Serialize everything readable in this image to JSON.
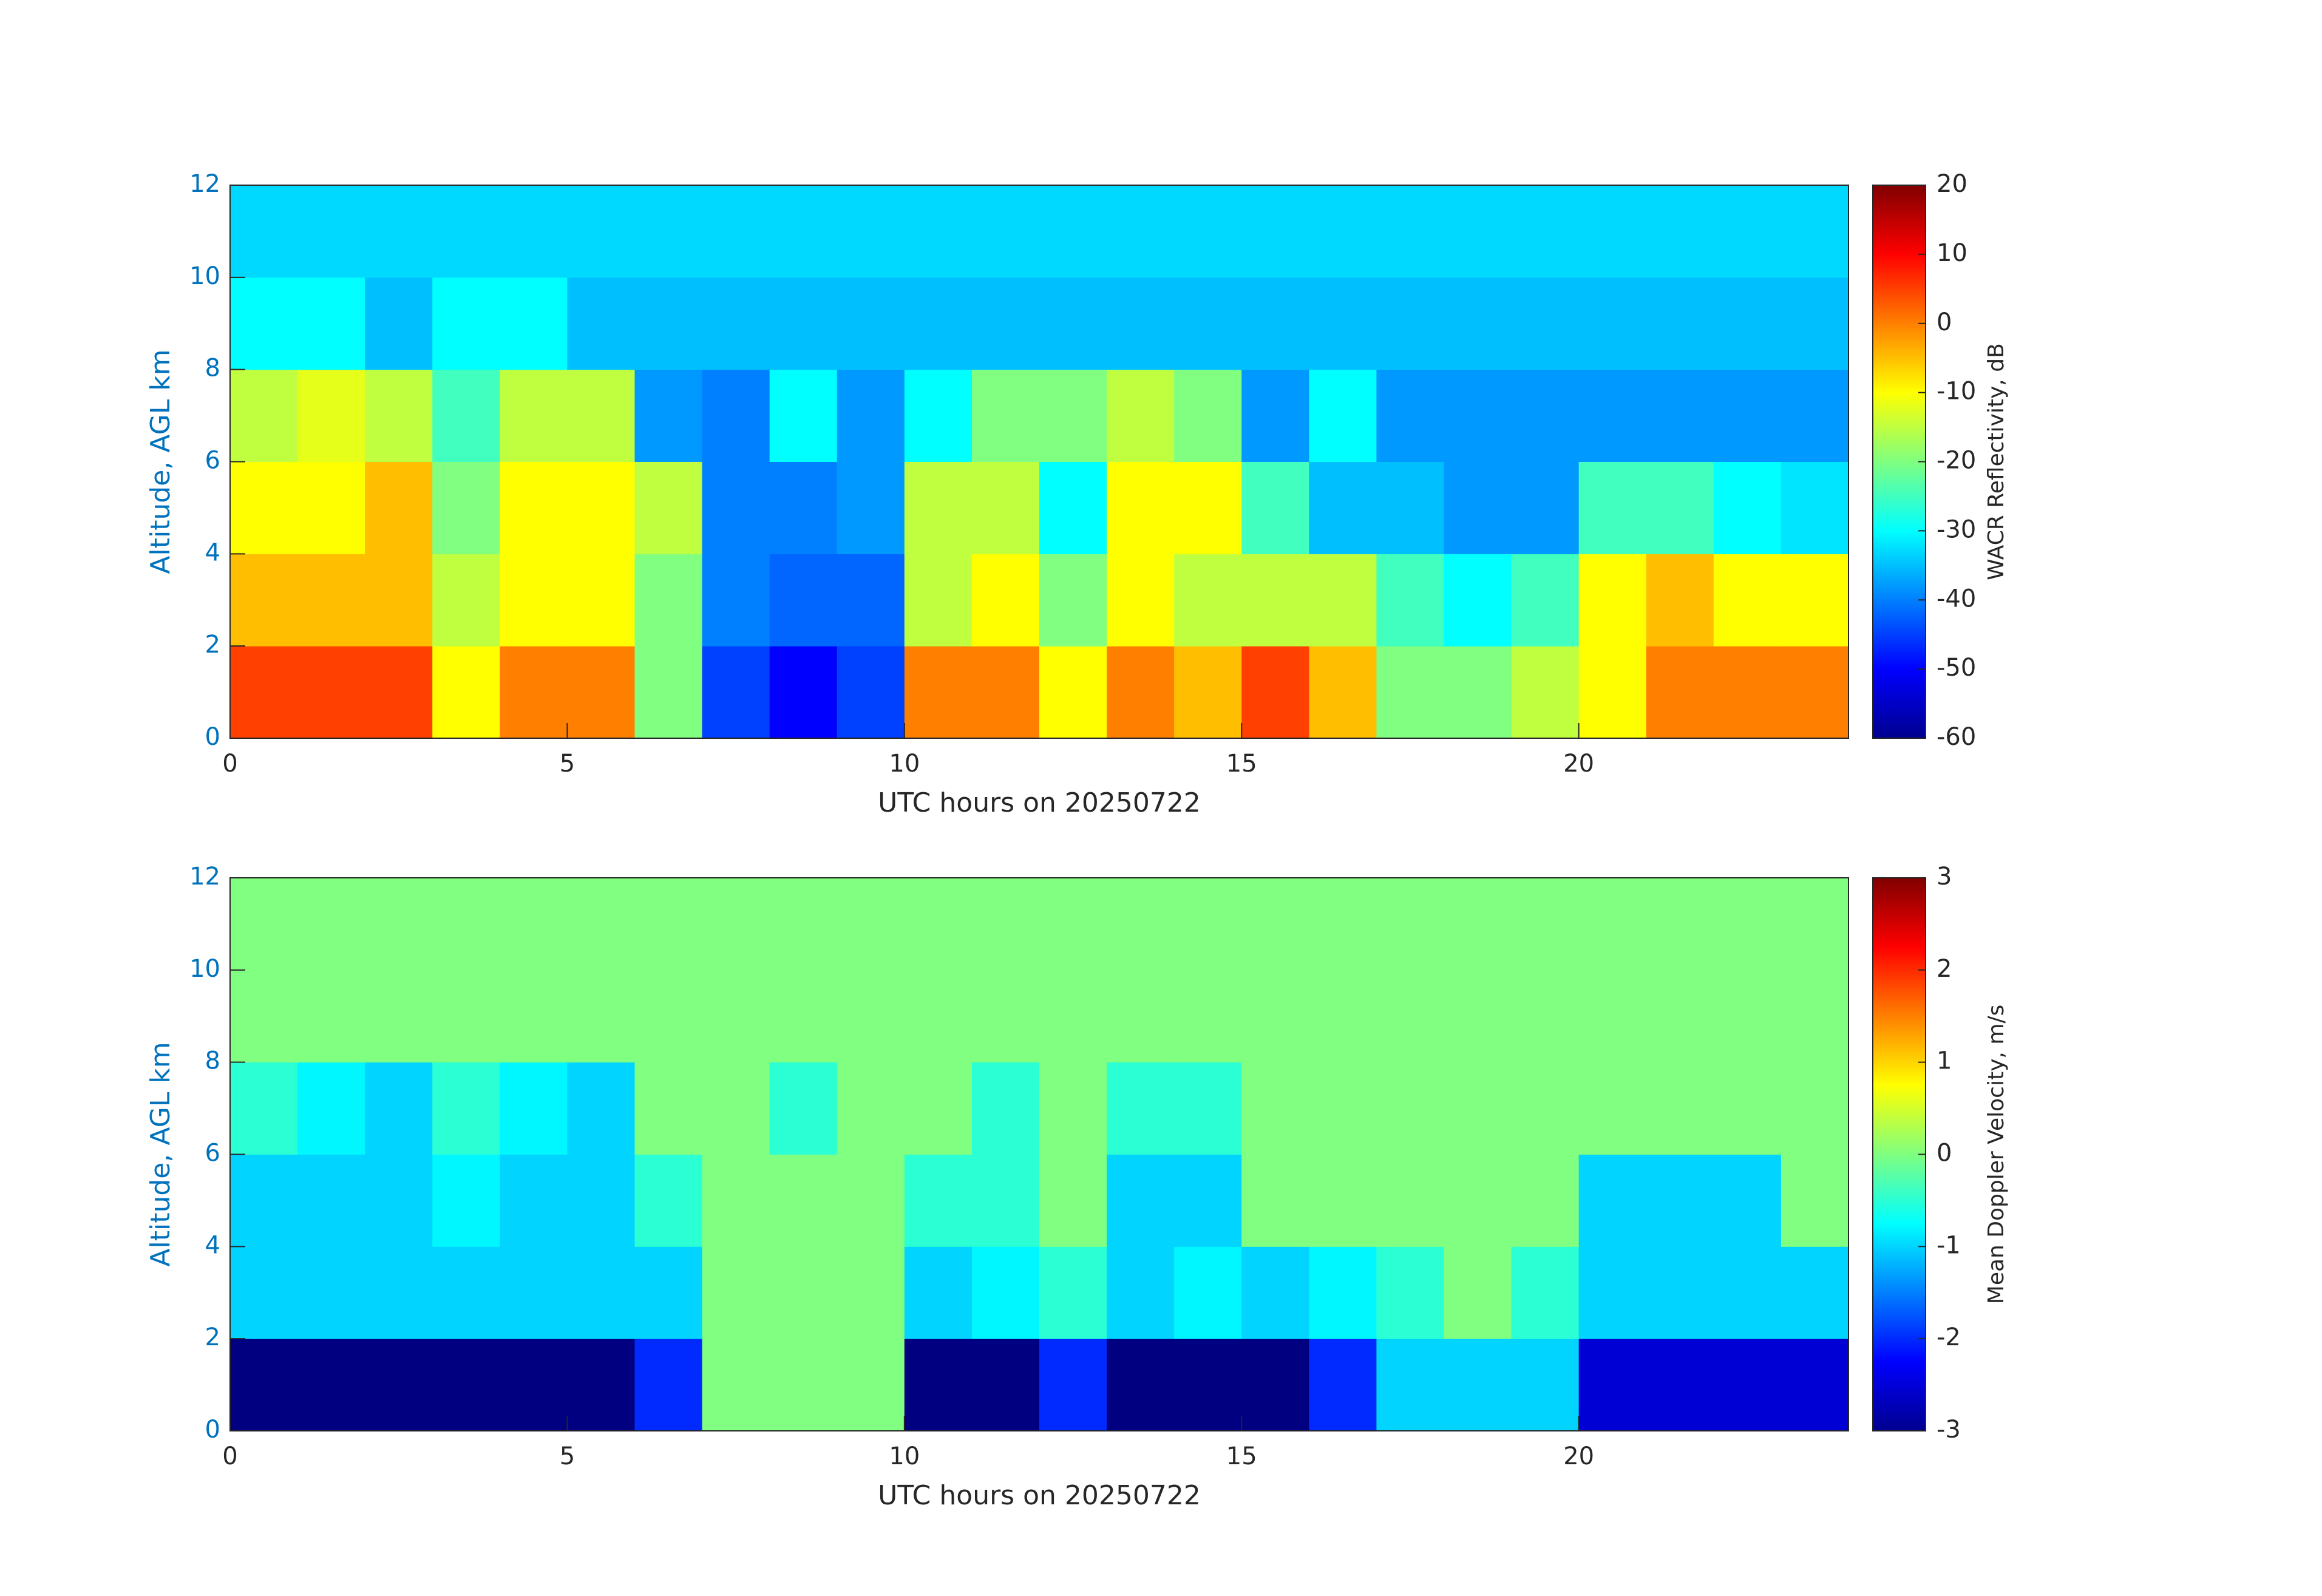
{
  "chart_data": [
    {
      "type": "heatmap",
      "colormap": "jet",
      "xlabel": "UTC hours on 20250722",
      "ylabel": "Altitude, AGL km",
      "colorbar_label": "WACR Reflectivity, dB",
      "xlim": [
        0,
        24
      ],
      "ylim": [
        0,
        12
      ],
      "xticks": [
        0,
        5,
        10,
        15,
        20
      ],
      "yticks": [
        0,
        2,
        4,
        6,
        8,
        10,
        12
      ],
      "zlim": [
        -60,
        20
      ],
      "zticks": [
        -60,
        -50,
        -40,
        -30,
        -20,
        -10,
        0,
        10,
        20
      ],
      "x": [
        0.5,
        1.5,
        2.5,
        3.5,
        4.5,
        5.5,
        6.5,
        7.5,
        8.5,
        9.5,
        10.5,
        11.5,
        12.5,
        13.5,
        14.5,
        15.5,
        16.5,
        17.5,
        18.5,
        19.5,
        20.5,
        21.5,
        22.5,
        23.5
      ],
      "y": [
        1,
        3,
        5,
        7,
        9,
        11
      ],
      "z": [
        [
          5,
          5,
          5,
          -10,
          0,
          0,
          -20,
          -45,
          -50,
          -45,
          0,
          0,
          -10,
          0,
          -5,
          5,
          -5,
          -20,
          -20,
          -15,
          -10,
          0,
          0,
          0
        ],
        [
          -5,
          -5,
          -5,
          -15,
          -10,
          -10,
          -20,
          -40,
          -42,
          -42,
          -15,
          -10,
          -20,
          -10,
          -15,
          -15,
          -15,
          -25,
          -30,
          -25,
          -10,
          -5,
          -10,
          -10
        ],
        [
          -10,
          -10,
          -5,
          -20,
          -10,
          -10,
          -15,
          -40,
          -40,
          -38,
          -15,
          -15,
          -30,
          -10,
          -10,
          -25,
          -35,
          -35,
          -38,
          -38,
          -25,
          -25,
          -30,
          -32
        ],
        [
          -15,
          -12,
          -15,
          -25,
          -15,
          -15,
          -38,
          -40,
          -30,
          -38,
          -30,
          -20,
          -20,
          -15,
          -20,
          -38,
          -30,
          -38,
          -38,
          -38,
          -38,
          -38,
          -38,
          -38
        ],
        [
          -30,
          -30,
          -35,
          -30,
          -30,
          -35,
          -35,
          -35,
          -35,
          -35,
          -35,
          -35,
          -35,
          -35,
          -35,
          -35,
          -35,
          -35,
          -35,
          -35,
          -35,
          -35,
          -35,
          -35
        ],
        [
          -33,
          -33,
          -33,
          -33,
          -33,
          -33,
          -33,
          -33,
          -33,
          -33,
          -33,
          -33,
          -33,
          -33,
          -33,
          -33,
          -33,
          -33,
          -33,
          -33,
          -33,
          -33,
          -33,
          -33
        ]
      ]
    },
    {
      "type": "heatmap",
      "colormap": "jet",
      "xlabel": "UTC hours on 20250722",
      "ylabel": "Altitude, AGL km",
      "colorbar_label": "Mean Doppler Velocity, m/s",
      "xlim": [
        0,
        24
      ],
      "ylim": [
        0,
        12
      ],
      "xticks": [
        0,
        5,
        10,
        15,
        20
      ],
      "yticks": [
        0,
        2,
        4,
        6,
        8,
        10,
        12
      ],
      "zlim": [
        -3,
        3
      ],
      "zticks": [
        -3,
        -2,
        -1,
        0,
        1,
        2,
        3
      ],
      "x": [
        0.5,
        1.5,
        2.5,
        3.5,
        4.5,
        5.5,
        6.5,
        7.5,
        8.5,
        9.5,
        10.5,
        11.5,
        12.5,
        13.5,
        14.5,
        15.5,
        16.5,
        17.5,
        18.5,
        19.5,
        20.5,
        21.5,
        22.5,
        23.5
      ],
      "y": [
        1,
        3,
        5,
        7,
        9,
        11
      ],
      "z": [
        [
          -3,
          -3,
          -3,
          -3,
          -3,
          -3,
          -2,
          0,
          0,
          0,
          -3,
          -3,
          -2,
          -3,
          -3,
          -3,
          -2,
          -1,
          -1,
          -1,
          -2.5,
          -2.5,
          -2.5,
          -2.5
        ],
        [
          -1,
          -1,
          -1,
          -1,
          -1,
          -1,
          -1,
          0,
          0,
          0,
          -1,
          -0.8,
          -0.5,
          -1,
          -0.8,
          -1,
          -0.8,
          -0.5,
          0,
          -0.5,
          -1,
          -1,
          -1,
          -1
        ],
        [
          -1,
          -1,
          -1,
          -0.8,
          -1,
          -1,
          -0.5,
          0,
          0,
          0,
          -0.5,
          -0.5,
          0,
          -1,
          -1,
          0,
          0,
          0,
          0,
          0,
          -1,
          -1,
          -1,
          0
        ],
        [
          -0.5,
          -0.8,
          -1,
          -0.5,
          -0.8,
          -1,
          0,
          0,
          -0.5,
          0,
          0,
          -0.5,
          0,
          -0.5,
          -0.5,
          0,
          0,
          0,
          0,
          0,
          0,
          0,
          0,
          0
        ],
        [
          0,
          0,
          0,
          0,
          0,
          0,
          0,
          0,
          0,
          0,
          0,
          0,
          0,
          0,
          0,
          0,
          0,
          0,
          0,
          0,
          0,
          0,
          0,
          0
        ],
        [
          0,
          0,
          0,
          0,
          0,
          0,
          0,
          0,
          0,
          0,
          0,
          0,
          0,
          0,
          0,
          0,
          0,
          0,
          0,
          0,
          0,
          0,
          0,
          0
        ]
      ]
    }
  ]
}
